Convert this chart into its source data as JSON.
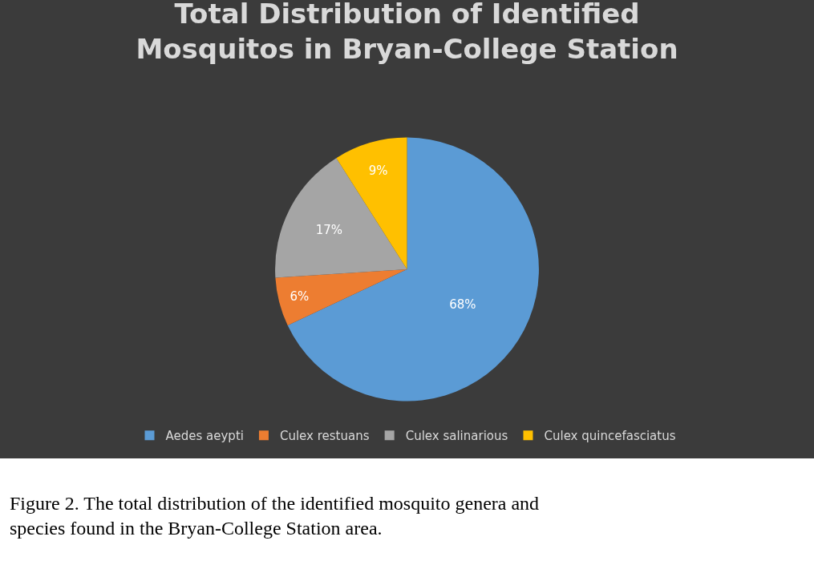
{
  "chart_data": {
    "type": "pie",
    "title": "Total Distribution of Identified\nMosquitos in Bryan-College Station",
    "categories": [
      "Aedes aeypti",
      "Culex restuans",
      "Culex salinarious",
      "Culex quincefasciatus"
    ],
    "values": [
      68,
      6,
      17,
      9
    ],
    "colors": [
      "#5b9bd5",
      "#ed7d31",
      "#a5a5a5",
      "#ffc000"
    ],
    "value_labels": [
      "68%",
      "6%",
      "17%",
      "9%"
    ],
    "legend": "bottom",
    "annotations": [
      "Figure 2. The total distribution of the identified mosquito genera and species found in the Bryan-College Station area."
    ]
  }
}
